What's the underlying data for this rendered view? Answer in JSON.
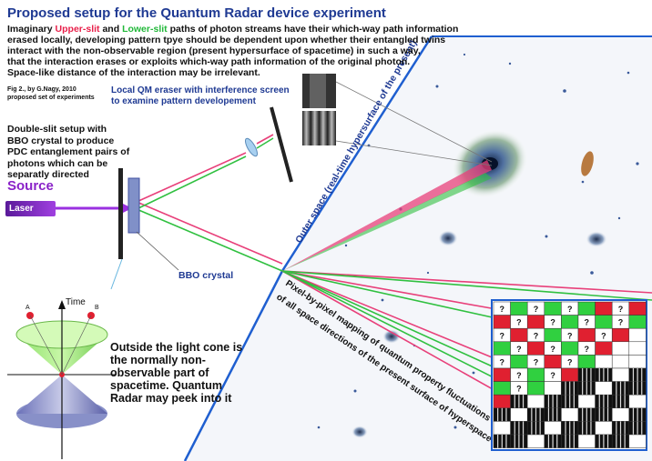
{
  "title": "Proposed setup for the Quantum Radar device experiment",
  "intro": {
    "w1": "Imaginary",
    "upper": "Upper-slit",
    "w2": "and",
    "lower": "Lower-slit",
    "w3": "paths of photon streams have their which-way path information",
    "line2": "erased locally, developing pattern tpye should be dependent upon whether their entangled twins",
    "line3": "interact with the non-observable region (present hypersurface of spacetime) in such a way,",
    "line4": "that the interaction erases or exploits which-way path information of the original photon.",
    "line5": "Space-like distance of the interaction may be irrelevant."
  },
  "fig_caption": [
    "Fig 2., by G.Nagy, 2010",
    "proposed set of experiments"
  ],
  "eraser_label": [
    "Local QM eraser with interference screen",
    "to examine pattern developement"
  ],
  "double_slit_text": "Double-slit setup with BBO crystal to produce PDC entanglement pairs of photons which can be separatly directed",
  "source_label": "Source",
  "laser_label": "Laser",
  "bbo_label": "BBO crystal",
  "outer_space_label": "Outer space (real-time hypersurface of the present)",
  "mapping_label": [
    "Pixel-by-pixel mapping of quantum property fluctuations",
    "of all space directions of the present surface of hyperspace"
  ],
  "time_label": "Time",
  "cone_point_a": "A",
  "cone_point_b": "B",
  "cone_text": "Outside the light cone is the normally non-observable part of spacetime. Quantum Radar may peek into it",
  "grid_mark": "?",
  "colors": {
    "title_blue": "#1f3a93",
    "upper_red": "#e8204a",
    "lower_green": "#22b83a",
    "source_purple": "#8a22c8",
    "beam_pink": "#e8407a",
    "beam_green": "#30c040",
    "grid_red": "#e02030",
    "grid_green": "#30d040"
  }
}
